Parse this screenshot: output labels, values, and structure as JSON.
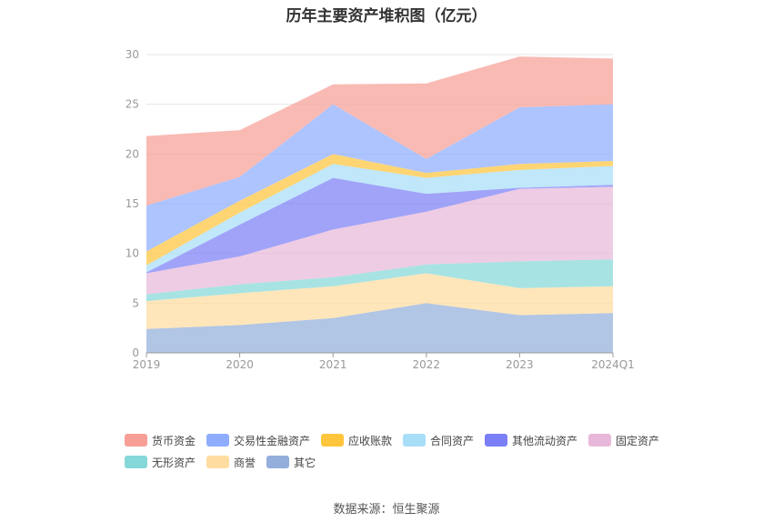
{
  "title": "历年主要资产堆积图（亿元）",
  "source": "数据来源：恒生聚源",
  "chart_data": {
    "type": "area",
    "stacked": true,
    "categories": [
      "2019",
      "2020",
      "2021",
      "2022",
      "2023",
      "2024Q1"
    ],
    "yticks": [
      0,
      5,
      10,
      15,
      20,
      25,
      30
    ],
    "ylim": [
      0,
      30
    ],
    "grid": true,
    "legend_position": "bottom",
    "series": [
      {
        "name": "其它",
        "color": "#93aedb",
        "values": [
          2.4,
          2.8,
          3.5,
          5.0,
          3.8,
          4.0
        ]
      },
      {
        "name": "商誉",
        "color": "#ffdca0",
        "values": [
          2.8,
          3.2,
          3.2,
          3.0,
          2.7,
          2.7
        ]
      },
      {
        "name": "无形资产",
        "color": "#86d8d8",
        "values": [
          0.7,
          0.9,
          0.9,
          0.9,
          2.7,
          2.7
        ]
      },
      {
        "name": "固定资产",
        "color": "#e8b8da",
        "values": [
          2.1,
          2.8,
          4.8,
          5.3,
          7.3,
          7.3
        ]
      },
      {
        "name": "其他流动资产",
        "color": "#7b7ff5",
        "values": [
          0.1,
          3.2,
          5.2,
          1.8,
          0.1,
          0.2
        ]
      },
      {
        "name": "合同资产",
        "color": "#a8def8",
        "values": [
          0.7,
          1.2,
          1.4,
          1.6,
          1.8,
          1.9
        ]
      },
      {
        "name": "应收账款",
        "color": "#ffc53d",
        "values": [
          1.4,
          1.2,
          1.0,
          0.5,
          0.6,
          0.5
        ]
      },
      {
        "name": "交易性金融资产",
        "color": "#8fadff",
        "values": [
          4.6,
          2.4,
          5.0,
          1.4,
          5.7,
          5.7
        ]
      },
      {
        "name": "货币资金",
        "color": "#f79f97",
        "values": [
          7.0,
          4.7,
          2.0,
          7.6,
          5.1,
          4.6
        ]
      }
    ]
  },
  "legend_order": [
    "货币资金",
    "交易性金融资产",
    "应收账款",
    "合同资产",
    "其他流动资产",
    "固定资产",
    "无形资产",
    "商誉",
    "其它"
  ]
}
